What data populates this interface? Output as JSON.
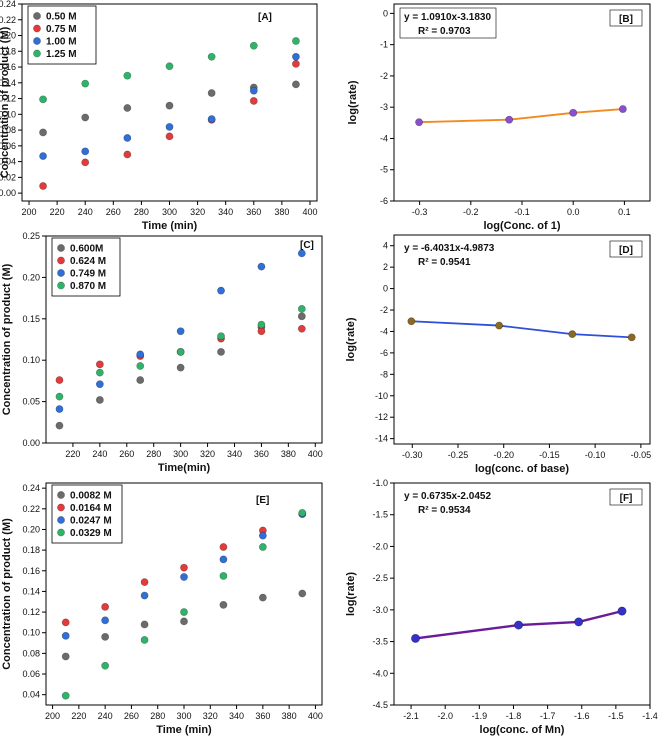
{
  "colors": {
    "gray": "#6b6b6b",
    "red": "#e23b3b",
    "blue": "#2f6fd6",
    "green": "#2fb36a",
    "orange": "#f28a1e",
    "purple_point": "#8a4fd0",
    "line_D": "#2f4fd8",
    "point_D": "#8a6a22",
    "line_F": "#6a1b9a",
    "point_F": "#3530c8"
  },
  "chart_data": [
    {
      "id": "A",
      "type": "scatter",
      "panel_label": "[A]",
      "xlabel": "Time (min)",
      "ylabel": "Concentration of product (M)",
      "xlim": [
        195,
        405
      ],
      "ylim": [
        -0.01,
        0.24
      ],
      "xticks": [
        200,
        220,
        240,
        260,
        280,
        300,
        320,
        340,
        360,
        380,
        400
      ],
      "yticks": [
        0.0,
        0.02,
        0.04,
        0.06,
        0.08,
        0.1,
        0.12,
        0.14,
        0.16,
        0.18,
        0.2,
        0.22,
        0.24
      ],
      "ytick_decimals": 2,
      "legend_position": "top-left",
      "series": [
        {
          "name": "0.50 M",
          "color_key": "gray",
          "x": [
            210,
            240,
            270,
            300,
            330,
            360,
            390
          ],
          "y": [
            0.077,
            0.096,
            0.108,
            0.111,
            0.127,
            0.134,
            0.138
          ]
        },
        {
          "name": "0.75 M",
          "color_key": "red",
          "x": [
            210,
            240,
            270,
            300,
            330,
            360,
            390
          ],
          "y": [
            0.009,
            0.039,
            0.049,
            0.072,
            0.093,
            0.117,
            0.164
          ]
        },
        {
          "name": "1.00 M",
          "color_key": "blue",
          "x": [
            210,
            240,
            270,
            300,
            330,
            360,
            390
          ],
          "y": [
            0.047,
            0.053,
            0.07,
            0.084,
            0.094,
            0.13,
            0.173
          ]
        },
        {
          "name": "1.25 M",
          "color_key": "green",
          "x": [
            210,
            240,
            270,
            300,
            330,
            360,
            390
          ],
          "y": [
            0.119,
            0.139,
            0.149,
            0.161,
            0.173,
            0.187,
            0.193
          ]
        }
      ]
    },
    {
      "id": "B",
      "type": "line",
      "panel_label": "[B]",
      "equation": "y = 1.0910x-3.1830",
      "r2": "R² = 0.9703",
      "xlabel": "log(Conc. of 1)",
      "ylabel": "log(rate)",
      "xlim": [
        -0.35,
        0.15
      ],
      "ylim": [
        -6,
        0.3
      ],
      "xticks": [
        -0.3,
        -0.2,
        -0.1,
        0.0,
        0.1
      ],
      "xtick_labels": [
        "-0.3",
        "-0.2",
        "-0.1",
        "0.0",
        "0.1"
      ],
      "yticks": [
        0,
        -1,
        -2,
        -3,
        -4,
        -5,
        -6
      ],
      "line_color_key": "orange",
      "point_color_key": "purple_point",
      "x": [
        -0.301,
        -0.125,
        0.0,
        0.097
      ],
      "y": [
        -3.48,
        -3.4,
        -3.18,
        -3.06
      ]
    },
    {
      "id": "C",
      "type": "scatter",
      "panel_label": "[C]",
      "xlabel": "Time(min)",
      "ylabel": "Concentration of product (M)",
      "xlim": [
        200,
        405
      ],
      "ylim": [
        0,
        0.25
      ],
      "xticks": [
        220,
        240,
        260,
        280,
        300,
        320,
        340,
        360,
        380,
        400
      ],
      "yticks": [
        0.0,
        0.05,
        0.1,
        0.15,
        0.2,
        0.25
      ],
      "ytick_decimals": 2,
      "legend_position": "top-left",
      "series": [
        {
          "name": "0.600M",
          "color_key": "gray",
          "x": [
            210,
            240,
            270,
            300,
            330,
            360,
            390
          ],
          "y": [
            0.021,
            0.052,
            0.076,
            0.091,
            0.11,
            0.14,
            0.153
          ]
        },
        {
          "name": "0.624 M",
          "color_key": "red",
          "x": [
            210,
            240,
            270,
            300,
            330,
            360,
            390
          ],
          "y": [
            0.076,
            0.095,
            0.105,
            0.11,
            0.126,
            0.135,
            0.138
          ]
        },
        {
          "name": "0.749 M",
          "color_key": "blue",
          "x": [
            210,
            240,
            270,
            300,
            330,
            360,
            390
          ],
          "y": [
            0.041,
            0.071,
            0.107,
            0.135,
            0.184,
            0.213,
            0.229
          ]
        },
        {
          "name": "0.870 M",
          "color_key": "green",
          "x": [
            210,
            240,
            270,
            300,
            330,
            360,
            390
          ],
          "y": [
            0.056,
            0.085,
            0.093,
            0.11,
            0.129,
            0.143,
            0.162
          ]
        }
      ]
    },
    {
      "id": "D",
      "type": "line",
      "panel_label": "[D]",
      "equation": "y = -6.4031x-4.9873",
      "r2": "R² = 0.9541",
      "xlabel": "log(conc. of base)",
      "ylabel": "log(rate)",
      "xlim": [
        -0.32,
        -0.04
      ],
      "ylim": [
        -14.5,
        5
      ],
      "xticks": [
        -0.3,
        -0.25,
        -0.2,
        -0.15,
        -0.1,
        -0.05
      ],
      "xtick_labels": [
        "-0.30",
        "-0.25",
        "-0.20",
        "-0.15",
        "-0.10",
        "-0.05"
      ],
      "yticks": [
        4,
        2,
        0,
        -2,
        -4,
        -6,
        -8,
        -10,
        -12,
        -14
      ],
      "line_color_key": "line_D",
      "point_color_key": "point_D",
      "x": [
        -0.301,
        -0.205,
        -0.125,
        -0.06
      ],
      "y": [
        -3.05,
        -3.45,
        -4.25,
        -4.55
      ]
    },
    {
      "id": "E",
      "type": "scatter",
      "panel_label": "[E]",
      "xlabel": "Time (min)",
      "ylabel": "Concentration of product (M)",
      "xlim": [
        195,
        405
      ],
      "ylim": [
        0.03,
        0.245
      ],
      "xticks": [
        200,
        220,
        240,
        260,
        280,
        300,
        320,
        340,
        360,
        380,
        400
      ],
      "yticks": [
        0.04,
        0.06,
        0.08,
        0.1,
        0.12,
        0.14,
        0.16,
        0.18,
        0.2,
        0.22,
        0.24
      ],
      "ytick_decimals": 2,
      "legend_position": "top-left",
      "series": [
        {
          "name": "0.0082 M",
          "color_key": "gray",
          "x": [
            210,
            240,
            270,
            300,
            330,
            360,
            390
          ],
          "y": [
            0.077,
            0.096,
            0.108,
            0.111,
            0.127,
            0.134,
            0.138
          ]
        },
        {
          "name": "0.0164 M",
          "color_key": "red",
          "x": [
            210,
            240,
            270,
            300,
            330,
            360,
            390
          ],
          "y": [
            0.11,
            0.125,
            0.149,
            0.163,
            0.183,
            0.199,
            0.215
          ]
        },
        {
          "name": "0.0247 M",
          "color_key": "blue",
          "x": [
            210,
            240,
            270,
            300,
            330,
            360,
            390
          ],
          "y": [
            0.097,
            0.112,
            0.136,
            0.154,
            0.171,
            0.194,
            0.215
          ]
        },
        {
          "name": "0.0329 M",
          "color_key": "green",
          "x": [
            210,
            240,
            270,
            300,
            330,
            360,
            390
          ],
          "y": [
            0.039,
            0.068,
            0.093,
            0.12,
            0.155,
            0.183,
            0.216
          ]
        }
      ]
    },
    {
      "id": "F",
      "type": "line",
      "panel_label": "[F]",
      "equation": "y = 0.6735x-2.0452",
      "r2": "R² = 0.9534",
      "xlabel": "log(conc. of Mn)",
      "ylabel": "log(rate)",
      "xlim": [
        -2.15,
        -1.4
      ],
      "ylim": [
        -4.5,
        -1.0
      ],
      "xticks": [
        -2.1,
        -2.0,
        -1.9,
        -1.8,
        -1.7,
        -1.6,
        -1.5,
        -1.4
      ],
      "xtick_labels": [
        "-2.1",
        "-2.0",
        "-1.9",
        "-1.8",
        "-1.7",
        "-1.6",
        "-1.5",
        "-1.4"
      ],
      "yticks": [
        -1.0,
        -1.5,
        -2.0,
        -2.5,
        -3.0,
        -3.5,
        -4.0,
        -4.5
      ],
      "ytick_decimals": 1,
      "line_color_key": "line_F",
      "point_color_key": "point_F",
      "x": [
        -2.087,
        -1.785,
        -1.609,
        -1.482
      ],
      "y": [
        -3.45,
        -3.24,
        -3.19,
        -3.02
      ]
    }
  ]
}
